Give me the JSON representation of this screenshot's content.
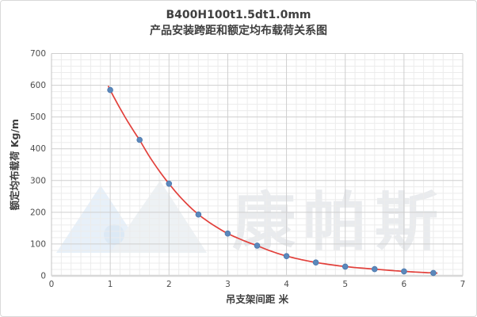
{
  "chart": {
    "title_line1": "B400H100t1.5dt1.0mm",
    "title_line2": "产品安装跨距和额定均布载荷关系图",
    "watermark_text": "康帕斯"
  },
  "chart_data": {
    "type": "scatter",
    "title": "B400H100t1.5dt1.0mm 产品安装跨距和额定均布载荷关系图",
    "xlabel": "吊支架间距  米",
    "ylabel": "额定均布载荷 Kg/m",
    "x": [
      1,
      1.5,
      2,
      2.5,
      3,
      3.5,
      4,
      4.5,
      5,
      5.5,
      6,
      6.5
    ],
    "series": [
      {
        "name": "额定均布载荷",
        "values": [
          585,
          428,
          290,
          193,
          133,
          95,
          62,
          42,
          29,
          21,
          14,
          9
        ]
      }
    ],
    "trendline": {
      "type": "exponential",
      "color": "#e2403b"
    },
    "xlim": [
      0,
      7
    ],
    "ylim": [
      0,
      700
    ],
    "x_major_ticks": [
      0,
      1,
      2,
      3,
      4,
      5,
      6,
      7
    ],
    "y_major_ticks": [
      0,
      100,
      200,
      300,
      400,
      500,
      600,
      700
    ],
    "x_minor_per_major": 6,
    "y_minor_step": 20,
    "grid": "major+minor",
    "legend": "none",
    "marker_color": "#5b88bb",
    "marker_edge_color": "#4a77ad",
    "grid_major_color": "#cfcfcf",
    "grid_minor_color": "#ececec",
    "axis_line_color": "#d8d8d8",
    "tick_label_color": "#4d4d4d",
    "watermark_text_color": "#e9ebee",
    "watermark_blue": "#e7f0f9",
    "watermark_gray": "#edf1f4",
    "watermark_circle": "#dce9f5"
  }
}
